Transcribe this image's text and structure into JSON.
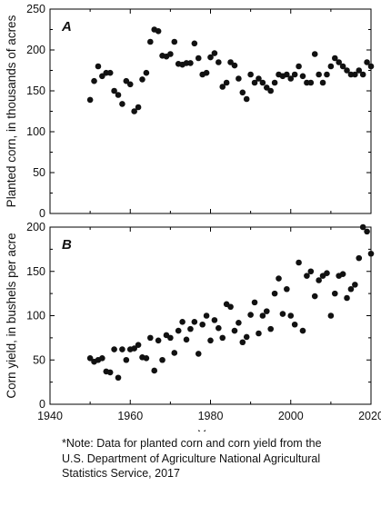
{
  "chart_data": [
    {
      "type": "scatter",
      "panel_label": "A",
      "title": "",
      "xlabel": "",
      "ylabel": "Planted corn, in thousands of acres",
      "xlim": [
        1940,
        2020
      ],
      "ylim": [
        0,
        250
      ],
      "xticks": [
        1940,
        1960,
        1980,
        2000,
        2020
      ],
      "yticks": [
        0,
        50,
        100,
        150,
        200,
        250
      ],
      "grid": false,
      "legend": "none",
      "series": [
        {
          "x": [
            1950,
            1951,
            1952,
            1953,
            1954,
            1955,
            1956,
            1957,
            1958,
            1959,
            1960,
            1961,
            1962,
            1963,
            1964,
            1965,
            1966,
            1967,
            1968,
            1969,
            1970,
            1971,
            1972,
            1973,
            1974,
            1975,
            1976,
            1977,
            1978,
            1979,
            1980,
            1981,
            1982,
            1983,
            1984,
            1985,
            1986,
            1987,
            1988,
            1989,
            1990,
            1991,
            1992,
            1993,
            1994,
            1995,
            1996,
            1997,
            1998,
            1999,
            2000,
            2001,
            2002,
            2003,
            2004,
            2005,
            2006,
            2007,
            2008,
            2009,
            2010,
            2011,
            2012,
            2013,
            2014,
            2015,
            2016,
            2017,
            2018,
            2019,
            2020
          ],
          "values": [
            139,
            162,
            180,
            168,
            172,
            172,
            150,
            145,
            134,
            162,
            158,
            125,
            130,
            164,
            172,
            210,
            225,
            223,
            193,
            192,
            195,
            210,
            183,
            182,
            184,
            184,
            208,
            190,
            170,
            172,
            191,
            196,
            185,
            155,
            160,
            185,
            181,
            165,
            148,
            140,
            170,
            160,
            165,
            160,
            154,
            150,
            160,
            170,
            168,
            170,
            165,
            170,
            180,
            168,
            160,
            160,
            195,
            170,
            160,
            170,
            180,
            190,
            185,
            180,
            175,
            170,
            170,
            175,
            170,
            185,
            180
          ]
        }
      ]
    },
    {
      "type": "scatter",
      "panel_label": "B",
      "title": "",
      "xlabel": "Year",
      "ylabel": "Corn yield, in bushels per acre",
      "xlim": [
        1940,
        2020
      ],
      "ylim": [
        0,
        200
      ],
      "xticks": [
        1940,
        1960,
        1980,
        2000,
        2020
      ],
      "yticks": [
        0,
        50,
        100,
        150,
        200
      ],
      "grid": false,
      "legend": "none",
      "series": [
        {
          "x": [
            1950,
            1951,
            1952,
            1953,
            1954,
            1955,
            1956,
            1957,
            1958,
            1959,
            1960,
            1961,
            1962,
            1963,
            1964,
            1965,
            1966,
            1967,
            1968,
            1969,
            1970,
            1971,
            1972,
            1973,
            1974,
            1975,
            1976,
            1977,
            1978,
            1979,
            1980,
            1981,
            1982,
            1983,
            1984,
            1985,
            1986,
            1987,
            1988,
            1989,
            1990,
            1991,
            1992,
            1993,
            1994,
            1995,
            1996,
            1997,
            1998,
            1999,
            2000,
            2001,
            2002,
            2003,
            2004,
            2005,
            2006,
            2007,
            2008,
            2009,
            2010,
            2011,
            2012,
            2013,
            2014,
            2015,
            2016,
            2017,
            2018,
            2019,
            2020
          ],
          "values": [
            52,
            48,
            50,
            52,
            37,
            36,
            62,
            30,
            62,
            50,
            62,
            63,
            67,
            53,
            52,
            75,
            38,
            72,
            50,
            78,
            75,
            58,
            83,
            93,
            73,
            85,
            93,
            57,
            90,
            100,
            72,
            95,
            86,
            75,
            113,
            110,
            83,
            92,
            70,
            76,
            101,
            115,
            80,
            100,
            105,
            85,
            125,
            142,
            102,
            130,
            100,
            90,
            160,
            83,
            145,
            150,
            122,
            140,
            145,
            148,
            100,
            125,
            145,
            147,
            120,
            130,
            135,
            165,
            200,
            195,
            170
          ]
        }
      ]
    }
  ],
  "colors": {
    "marker": "#111111",
    "axis": "#000000"
  },
  "note": {
    "line1": "*Note:  Data for planted corn and corn yield from the",
    "line2": "U.S. Department of Agriculture National Agricultural",
    "line3": "Statistics Service, 2017"
  }
}
